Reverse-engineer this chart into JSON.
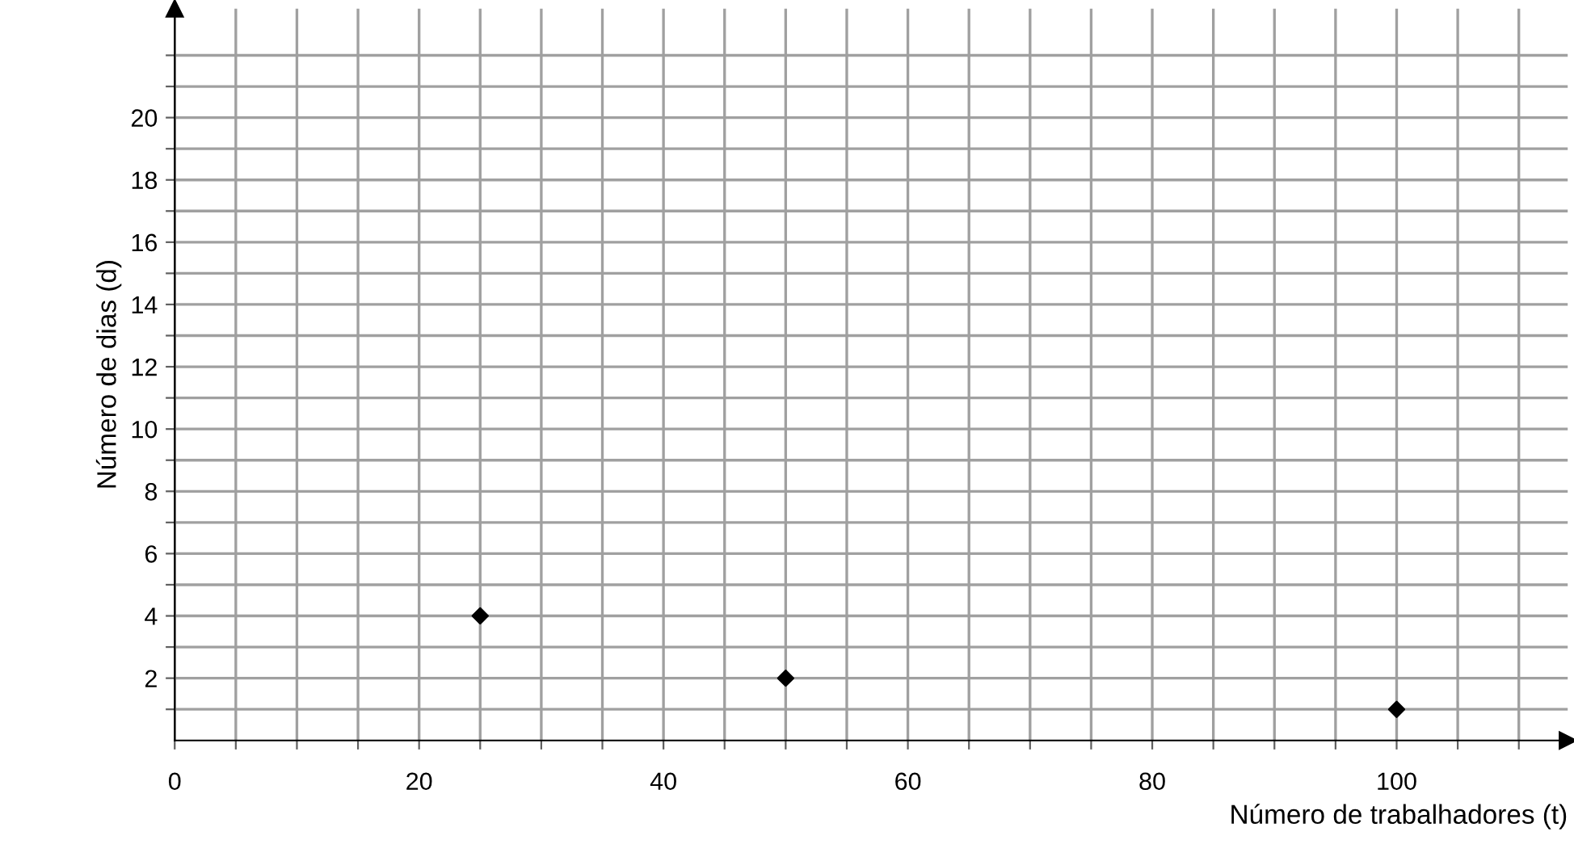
{
  "chart_data": {
    "type": "scatter",
    "xlabel": "Número de trabalhadores (t)",
    "ylabel": "Número de dias (d)",
    "x": [
      25,
      50,
      100
    ],
    "series": [
      {
        "color": "#000000",
        "values": [
          4,
          2,
          1
        ]
      }
    ],
    "marker": "diamond",
    "grid": true,
    "legend": false,
    "xlim": [
      0,
      114
    ],
    "ylim": [
      0,
      23.5
    ],
    "xticks": [
      0,
      {
        "value": 5,
        "label": null
      },
      {
        "value": 10,
        "label": null
      },
      {
        "value": 15,
        "label": null
      },
      20,
      {
        "value": 25,
        "label": null
      },
      {
        "value": 30,
        "label": null
      },
      {
        "value": 35,
        "label": null
      },
      40,
      {
        "value": 45,
        "label": null
      },
      {
        "value": 50,
        "label": null
      },
      {
        "value": 55,
        "label": null
      },
      60,
      {
        "value": 65,
        "label": null
      },
      {
        "value": 70,
        "label": null
      },
      {
        "value": 75,
        "label": null
      },
      80,
      {
        "value": 85,
        "label": null
      },
      {
        "value": 90,
        "label": null
      },
      {
        "value": 95,
        "label": null
      },
      100,
      {
        "value": 105,
        "label": null
      },
      {
        "value": 110,
        "label": null
      }
    ],
    "yticks": [
      {
        "value": 1,
        "label": null
      },
      2,
      {
        "value": 3,
        "label": null
      },
      4,
      {
        "value": 5,
        "label": null
      },
      6,
      {
        "value": 7,
        "label": null
      },
      8,
      {
        "value": 9,
        "label": null
      },
      10,
      {
        "value": 11,
        "label": null
      },
      12,
      {
        "value": 13,
        "label": null
      },
      14,
      {
        "value": 15,
        "label": null
      },
      16,
      {
        "value": 17,
        "label": null
      },
      18,
      {
        "value": 19,
        "label": null
      },
      20,
      {
        "value": 21,
        "label": null
      },
      {
        "value": 22,
        "label": null
      }
    ]
  }
}
